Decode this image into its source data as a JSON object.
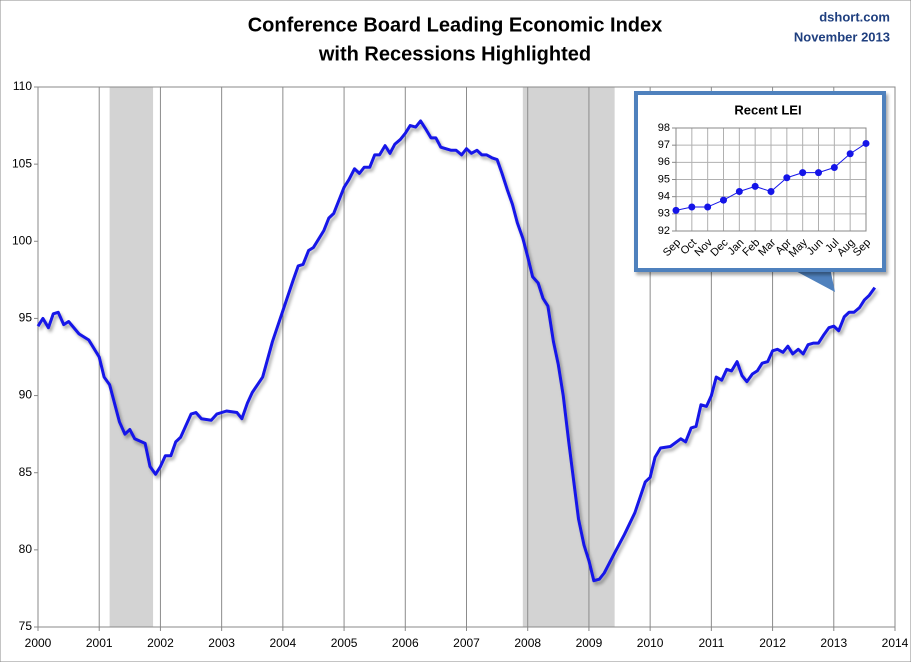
{
  "chart_data": [
    {
      "type": "line",
      "title": [
        "Conference Board Leading Economic Index",
        "with Recessions Highlighted"
      ],
      "annotations": [
        "dshort.com",
        "November 2013"
      ],
      "color": "#1515e8",
      "xlim": [
        2000,
        2014
      ],
      "xticks": [
        2000,
        2001,
        2002,
        2003,
        2004,
        2005,
        2006,
        2007,
        2008,
        2009,
        2010,
        2011,
        2012,
        2013,
        2014
      ],
      "ylim": [
        75,
        110
      ],
      "yticks": [
        75,
        80,
        85,
        90,
        95,
        100,
        105,
        110
      ],
      "grid": "x",
      "recessions": [
        [
          2001.17,
          2001.88
        ],
        [
          2007.92,
          2009.42
        ]
      ],
      "recession_color": "#d3d3d3",
      "x": [
        2000.0,
        2000.08,
        2000.17,
        2000.25,
        2000.33,
        2000.42,
        2000.5,
        2000.67,
        2000.83,
        2001.0,
        2001.08,
        2001.17,
        2001.33,
        2001.42,
        2001.5,
        2001.58,
        2001.75,
        2001.83,
        2001.92,
        2002.0,
        2002.08,
        2002.17,
        2002.25,
        2002.33,
        2002.5,
        2002.58,
        2002.67,
        2002.83,
        2002.92,
        2003.08,
        2003.25,
        2003.33,
        2003.42,
        2003.5,
        2003.67,
        2003.83,
        2004.0,
        2004.17,
        2004.25,
        2004.33,
        2004.42,
        2004.5,
        2004.67,
        2004.75,
        2004.83,
        2005.0,
        2005.08,
        2005.17,
        2005.25,
        2005.33,
        2005.42,
        2005.5,
        2005.58,
        2005.67,
        2005.75,
        2005.83,
        2005.92,
        2006.0,
        2006.08,
        2006.17,
        2006.25,
        2006.33,
        2006.42,
        2006.5,
        2006.58,
        2006.75,
        2006.83,
        2006.92,
        2007.0,
        2007.08,
        2007.17,
        2007.25,
        2007.33,
        2007.42,
        2007.5,
        2007.58,
        2007.67,
        2007.75,
        2007.83,
        2007.92,
        2008.0,
        2008.08,
        2008.17,
        2008.25,
        2008.33,
        2008.42,
        2008.5,
        2008.58,
        2008.67,
        2008.75,
        2008.83,
        2008.92,
        2009.0,
        2009.08,
        2009.17,
        2009.25,
        2009.42,
        2009.58,
        2009.75,
        2009.92,
        2010.0,
        2010.08,
        2010.17,
        2010.33,
        2010.5,
        2010.58,
        2010.67,
        2010.75,
        2010.83,
        2010.92,
        2011.0,
        2011.08,
        2011.17,
        2011.25,
        2011.33,
        2011.42,
        2011.5,
        2011.58,
        2011.67,
        2011.75,
        2011.83,
        2011.92,
        2012.0,
        2012.08,
        2012.17,
        2012.25,
        2012.33,
        2012.42,
        2012.5,
        2012.58,
        2012.67,
        2012.75,
        2012.83,
        2012.92,
        2013.0,
        2013.08,
        2013.17,
        2013.25,
        2013.33,
        2013.42,
        2013.5,
        2013.58,
        2013.67
      ],
      "values": [
        94.5,
        95.0,
        94.4,
        95.3,
        95.4,
        94.6,
        94.8,
        94.0,
        93.6,
        92.5,
        91.2,
        90.7,
        88.3,
        87.5,
        87.8,
        87.2,
        86.9,
        85.4,
        84.9,
        85.4,
        86.1,
        86.1,
        87.0,
        87.3,
        88.8,
        88.9,
        88.5,
        88.4,
        88.8,
        89.0,
        88.9,
        88.5,
        89.5,
        90.2,
        91.2,
        93.5,
        95.5,
        97.5,
        98.4,
        98.5,
        99.4,
        99.6,
        100.7,
        101.5,
        101.8,
        103.5,
        104.0,
        104.7,
        104.4,
        104.8,
        104.8,
        105.6,
        105.6,
        106.2,
        105.7,
        106.3,
        106.6,
        107.0,
        107.5,
        107.4,
        107.8,
        107.3,
        106.7,
        106.7,
        106.1,
        105.9,
        105.9,
        105.6,
        106.0,
        105.7,
        105.9,
        105.6,
        105.6,
        105.4,
        105.3,
        104.4,
        103.3,
        102.4,
        101.2,
        100.2,
        99.0,
        97.7,
        97.3,
        96.3,
        95.8,
        93.5,
        92.0,
        90.0,
        87.0,
        84.5,
        82.0,
        80.3,
        79.3,
        78.0,
        78.1,
        78.5,
        79.8,
        81.0,
        82.4,
        84.4,
        84.7,
        86.0,
        86.6,
        86.7,
        87.2,
        87.0,
        87.9,
        88.0,
        89.4,
        89.3,
        90.0,
        91.2,
        91.0,
        91.7,
        91.6,
        92.2,
        91.3,
        90.9,
        91.4,
        91.6,
        92.1,
        92.2,
        92.9,
        93.0,
        92.8,
        93.2,
        92.7,
        93.0,
        92.7,
        93.3,
        93.4,
        93.4,
        93.9,
        94.4,
        94.5,
        94.2,
        95.1,
        95.4,
        95.4,
        95.7,
        96.2,
        96.5,
        97.0
      ]
    },
    {
      "type": "line",
      "title": "Recent LEI",
      "color": "#1515e8",
      "markers": true,
      "grid": "both",
      "categories": [
        "Sep",
        "Oct",
        "Nov",
        "Dec",
        "Jan",
        "Feb",
        "Mar",
        "Apr",
        "May",
        "Jun",
        "Jul",
        "Aug",
        "Sep"
      ],
      "values": [
        93.2,
        93.4,
        93.4,
        93.8,
        94.3,
        94.6,
        94.3,
        95.1,
        95.4,
        95.4,
        95.7,
        96.5,
        97.1
      ],
      "ylim": [
        92,
        98
      ],
      "yticks": [
        92,
        93,
        94,
        95,
        96,
        97,
        98
      ]
    }
  ]
}
